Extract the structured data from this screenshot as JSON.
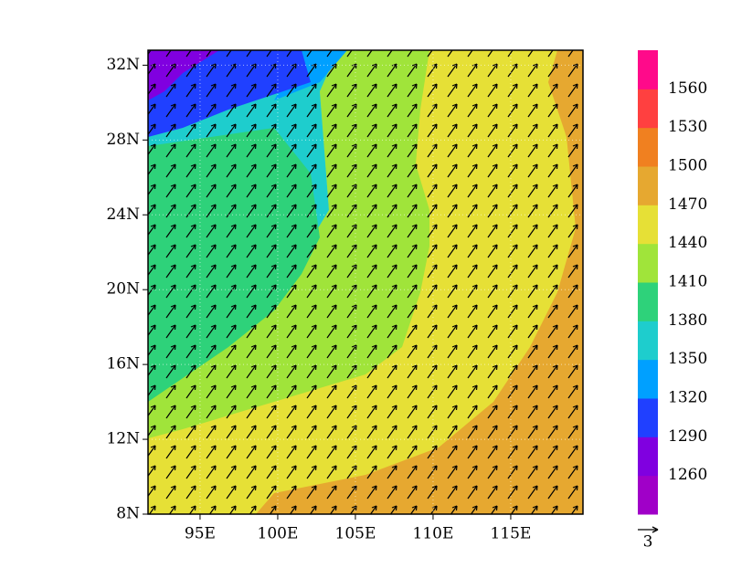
{
  "map": {
    "xlim": [
      91.65,
      119.65
    ],
    "ylim": [
      8,
      32.8
    ],
    "xticks": [
      {
        "value": 95,
        "label": "95E"
      },
      {
        "value": 100,
        "label": "100E"
      },
      {
        "value": 105,
        "label": "105E"
      },
      {
        "value": 110,
        "label": "110E"
      },
      {
        "value": 115,
        "label": "115E"
      }
    ],
    "yticks": [
      {
        "value": 8,
        "label": "8N"
      },
      {
        "value": 12,
        "label": "12N"
      },
      {
        "value": 16,
        "label": "16N"
      },
      {
        "value": 20,
        "label": "20N"
      },
      {
        "value": 24,
        "label": "24N"
      },
      {
        "value": 28,
        "label": "28N"
      },
      {
        "value": 32,
        "label": "32N"
      }
    ],
    "grid": true,
    "colorbar": {
      "levels": [
        1260,
        1290,
        1320,
        1350,
        1380,
        1410,
        1440,
        1470,
        1500,
        1530,
        1560
      ],
      "colors": [
        "#a000c8",
        "#8000e0",
        "#2040ff",
        "#00a0ff",
        "#1ecdcd",
        "#2ed27a",
        "#a0e43a",
        "#e6e036",
        "#e6a830",
        "#f08020",
        "#ff4040",
        "#ff0a8a"
      ]
    },
    "reference_vector": 3
  }
}
